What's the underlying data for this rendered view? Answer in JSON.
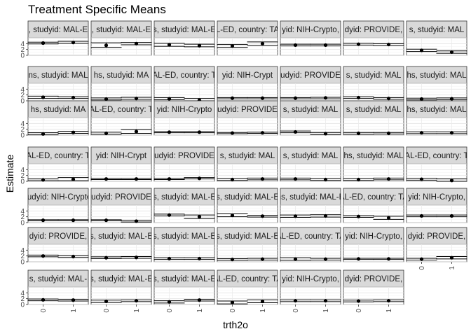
{
  "chart_data": {
    "type": "scatter",
    "title": "Treatment Specific Means",
    "xlabel": "trth2o",
    "ylabel": "Estimate",
    "x_categories": [
      "0",
      "1"
    ],
    "y_ticks": [
      0,
      2,
      4
    ],
    "ylim": [
      0,
      6
    ],
    "grid": true,
    "layout": {
      "rows": 7,
      "cols": 7
    },
    "panels": [
      {
        "label": ", studyid: MAL-E",
        "points": [
          {
            "x": "0",
            "y": 4.2,
            "lo": 3.9,
            "hi": 4.5
          },
          {
            "x": "1",
            "y": 4.4,
            "lo": 4.1,
            "hi": 4.8
          }
        ]
      },
      {
        "label": ", studyid: MAL-E",
        "points": [
          {
            "x": "0",
            "y": 3.4,
            "lo": 2.7,
            "hi": 4.3
          },
          {
            "x": "1",
            "y": 4.0,
            "lo": 3.6,
            "hi": 4.4
          }
        ]
      },
      {
        "label": "s, studyid: MAL-E",
        "points": [
          {
            "x": "0",
            "y": 3.6,
            "lo": 3.1,
            "hi": 4.1
          },
          {
            "x": "1",
            "y": 3.3,
            "lo": 2.9,
            "hi": 3.8
          }
        ]
      },
      {
        "label": "L-ED, country: TA",
        "points": [
          {
            "x": "0",
            "y": 3.2,
            "lo": 2.7,
            "hi": 3.7
          },
          {
            "x": "1",
            "y": 4.0,
            "lo": 3.4,
            "hi": 4.6
          }
        ]
      },
      {
        "label": "yid: NIH-Crypto,",
        "points": [
          {
            "x": "0",
            "y": 3.5,
            "lo": 3.2,
            "hi": 3.8
          },
          {
            "x": "1",
            "y": 3.5,
            "lo": 3.2,
            "hi": 3.8
          }
        ]
      },
      {
        "label": "dyid: PROVIDE, ",
        "points": [
          {
            "x": "0",
            "y": 3.8,
            "lo": 3.5,
            "hi": 4.1
          },
          {
            "x": "1",
            "y": 3.7,
            "lo": 3.4,
            "hi": 4.0
          }
        ]
      },
      {
        "label": "s, studyid: MAL",
        "points": [
          {
            "x": "0",
            "y": 1.7,
            "lo": 1.3,
            "hi": 2.1
          },
          {
            "x": "1",
            "y": 1.1,
            "lo": 0.7,
            "hi": 1.5
          }
        ]
      },
      {
        "label": "ns, studyid: MAL",
        "points": [
          {
            "x": "0",
            "y": 1.2,
            "lo": 0.8,
            "hi": 1.6
          },
          {
            "x": "1",
            "y": 1.1,
            "lo": 0.8,
            "hi": 1.4
          }
        ]
      },
      {
        "label": "hs, studyid: MA",
        "points": [
          {
            "x": "0",
            "y": 0.6,
            "lo": 0.3,
            "hi": 1.0
          },
          {
            "x": "1",
            "y": 0.8,
            "lo": 0.5,
            "hi": 1.2
          }
        ]
      },
      {
        "label": "AL-ED, country: T",
        "points": [
          {
            "x": "0",
            "y": 0.7,
            "lo": 0.4,
            "hi": 1.1
          },
          {
            "x": "1",
            "y": 0.2,
            "lo": -0.2,
            "hi": 0.8
          }
        ]
      },
      {
        "label": "yid: NIH-Crypt",
        "points": [
          {
            "x": "0",
            "y": 0.9,
            "lo": 0.7,
            "hi": 1.1
          },
          {
            "x": "1",
            "y": 0.9,
            "lo": 0.7,
            "hi": 1.1
          }
        ]
      },
      {
        "label": "udyid: PROVIDE",
        "points": [
          {
            "x": "0",
            "y": 0.9,
            "lo": 0.7,
            "hi": 1.1
          },
          {
            "x": "1",
            "y": 1.0,
            "lo": 0.7,
            "hi": 1.2
          }
        ]
      },
      {
        "label": "s, studyid: MAL",
        "points": [
          {
            "x": "0",
            "y": 1.1,
            "lo": 0.8,
            "hi": 1.4
          },
          {
            "x": "1",
            "y": 0.8,
            "lo": 0.5,
            "hi": 1.1
          }
        ]
      },
      {
        "label": "hs, studyid: MAL",
        "points": [
          {
            "x": "0",
            "y": 0.6,
            "lo": 0.3,
            "hi": 0.9
          },
          {
            "x": "1",
            "y": 0.7,
            "lo": 0.4,
            "hi": 1.0
          }
        ]
      },
      {
        "label": "hs, studyid: MA",
        "points": [
          {
            "x": "0",
            "y": 0.4,
            "lo": 0.1,
            "hi": 0.8
          },
          {
            "x": "1",
            "y": 0.9,
            "lo": 0.6,
            "hi": 1.3
          }
        ]
      },
      {
        "label": "AL-ED, country: T",
        "points": [
          {
            "x": "0",
            "y": 0.6,
            "lo": 0.3,
            "hi": 1.0
          },
          {
            "x": "1",
            "y": 1.2,
            "lo": 0.6,
            "hi": 1.9
          }
        ]
      },
      {
        "label": "yid: NIH-Crypto",
        "points": [
          {
            "x": "0",
            "y": 1.0,
            "lo": 0.8,
            "hi": 1.2
          },
          {
            "x": "1",
            "y": 1.0,
            "lo": 0.8,
            "hi": 1.2
          }
        ]
      },
      {
        "label": "udyid: PROVIDE",
        "points": [
          {
            "x": "0",
            "y": 0.7,
            "lo": 0.5,
            "hi": 0.9
          },
          {
            "x": "1",
            "y": 0.8,
            "lo": 0.6,
            "hi": 1.0
          }
        ]
      },
      {
        "label": "s, studyid: MAL",
        "points": [
          {
            "x": "0",
            "y": 1.1,
            "lo": 0.8,
            "hi": 1.4
          },
          {
            "x": "1",
            "y": 0.5,
            "lo": 0.2,
            "hi": 0.9
          }
        ]
      },
      {
        "label": "s, studyid: MAL",
        "points": [
          {
            "x": "0",
            "y": 0.6,
            "lo": 0.3,
            "hi": 0.9
          },
          {
            "x": "1",
            "y": 0.6,
            "lo": 0.4,
            "hi": 0.9
          }
        ]
      },
      {
        "label": "hs, studyid: MAL",
        "points": [
          {
            "x": "0",
            "y": 0.8,
            "lo": 0.5,
            "hi": 1.1
          },
          {
            "x": "1",
            "y": 0.8,
            "lo": 0.5,
            "hi": 1.1
          }
        ]
      },
      {
        "label": "AL-ED, country: T",
        "points": [
          {
            "x": "0",
            "y": 0.5,
            "lo": 0.2,
            "hi": 0.8
          },
          {
            "x": "1",
            "y": 0.7,
            "lo": 0.2,
            "hi": 1.3
          }
        ]
      },
      {
        "label": "yid: NIH-Crypt",
        "points": [
          {
            "x": "0",
            "y": 0.8,
            "lo": 0.6,
            "hi": 1.0
          },
          {
            "x": "1",
            "y": 0.8,
            "lo": 0.6,
            "hi": 1.0
          }
        ]
      },
      {
        "label": "udyid: PROVIDE",
        "points": [
          {
            "x": "0",
            "y": 0.8,
            "lo": 0.6,
            "hi": 1.0
          },
          {
            "x": "1",
            "y": 1.0,
            "lo": 0.8,
            "hi": 1.3
          }
        ]
      },
      {
        "label": "s, studyid: MAL",
        "points": [
          {
            "x": "0",
            "y": 0.6,
            "lo": 0.3,
            "hi": 0.9
          },
          {
            "x": "1",
            "y": 0.8,
            "lo": 0.5,
            "hi": 1.1
          }
        ]
      },
      {
        "label": "s, studyid: MAL",
        "points": [
          {
            "x": "0",
            "y": 0.8,
            "lo": 0.5,
            "hi": 1.1
          },
          {
            "x": "1",
            "y": 0.6,
            "lo": 0.3,
            "hi": 0.9
          }
        ]
      },
      {
        "label": "hs, studyid: MAL",
        "points": [
          {
            "x": "0",
            "y": 0.6,
            "lo": 0.3,
            "hi": 0.9
          },
          {
            "x": "1",
            "y": 0.8,
            "lo": 0.5,
            "hi": 1.1
          }
        ]
      },
      {
        "label": "AL-ED, country: T",
        "points": [
          {
            "x": "0",
            "y": 0.7,
            "lo": 0.4,
            "hi": 1.0
          },
          {
            "x": "1",
            "y": 0.3,
            "lo": -0.1,
            "hi": 0.8
          }
        ]
      },
      {
        "label": "tudyid: NIH-Crypto",
        "points": [
          {
            "x": "0",
            "y": 0.8,
            "lo": 0.6,
            "hi": 1.0
          },
          {
            "x": "1",
            "y": 0.8,
            "lo": 0.6,
            "hi": 1.0
          }
        ]
      },
      {
        "label": "udyid: PROVIDE",
        "points": [
          {
            "x": "0",
            "y": 0.8,
            "lo": 0.6,
            "hi": 1.0
          },
          {
            "x": "1",
            "y": 0.5,
            "lo": 0.2,
            "hi": 0.8
          }
        ]
      },
      {
        "label": "s, studyid: MAL-E",
        "points": [
          {
            "x": "0",
            "y": 2.6,
            "lo": 2.3,
            "hi": 2.9
          },
          {
            "x": "1",
            "y": 2.0,
            "lo": 1.4,
            "hi": 2.6
          }
        ]
      },
      {
        "label": "s, studyid: MAL-E",
        "points": [
          {
            "x": "0",
            "y": 2.5,
            "lo": 2.0,
            "hi": 3.0
          },
          {
            "x": "1",
            "y": 2.2,
            "lo": 1.9,
            "hi": 2.5
          }
        ]
      },
      {
        "label": "ns, studyid: MAL-E",
        "points": [
          {
            "x": "0",
            "y": 2.2,
            "lo": 1.8,
            "hi": 2.6
          },
          {
            "x": "1",
            "y": 2.3,
            "lo": 1.9,
            "hi": 2.7
          }
        ]
      },
      {
        "label": "AL-ED, country: TA",
        "points": [
          {
            "x": "0",
            "y": 2.1,
            "lo": 1.8,
            "hi": 2.4
          },
          {
            "x": "1",
            "y": 1.6,
            "lo": 1.1,
            "hi": 2.2
          }
        ]
      },
      {
        "label": "yid: NIH-Crypto,",
        "points": [
          {
            "x": "0",
            "y": 2.3,
            "lo": 2.0,
            "hi": 2.6
          },
          {
            "x": "1",
            "y": 2.3,
            "lo": 2.0,
            "hi": 2.6
          }
        ]
      },
      {
        "label": "dyid: PROVIDE,",
        "points": [
          {
            "x": "0",
            "y": 2.0,
            "lo": 1.7,
            "hi": 2.3
          },
          {
            "x": "1",
            "y": 1.8,
            "lo": 1.5,
            "hi": 2.1
          }
        ]
      },
      {
        "label": "s, studyid: MAL-E",
        "points": [
          {
            "x": "0",
            "y": 1.4,
            "lo": 1.1,
            "hi": 1.7
          },
          {
            "x": "1",
            "y": 1.5,
            "lo": 1.2,
            "hi": 1.8
          }
        ]
      },
      {
        "label": "s, studyid: MAL-E",
        "points": [
          {
            "x": "0",
            "y": 1.1,
            "lo": 0.8,
            "hi": 1.4
          },
          {
            "x": "1",
            "y": 1.1,
            "lo": 0.8,
            "hi": 1.4
          }
        ]
      },
      {
        "label": "s, studyid: MAL-E",
        "points": [
          {
            "x": "0",
            "y": 0.8,
            "lo": 0.5,
            "hi": 1.1
          },
          {
            "x": "1",
            "y": 0.9,
            "lo": 0.6,
            "hi": 1.2
          }
        ]
      },
      {
        "label": "AL-ED, country: TA",
        "points": [
          {
            "x": "0",
            "y": 0.9,
            "lo": 0.5,
            "hi": 1.4
          },
          {
            "x": "1",
            "y": 0.9,
            "lo": 0.6,
            "hi": 1.2
          }
        ]
      },
      {
        "label": "yid: NIH-Crypto,",
        "points": [
          {
            "x": "0",
            "y": 1.0,
            "lo": 0.8,
            "hi": 1.2
          },
          {
            "x": "1",
            "y": 1.0,
            "lo": 0.8,
            "hi": 1.2
          }
        ]
      },
      {
        "label": "dyid: PROVIDE,",
        "points": [
          {
            "x": "0",
            "y": 0.9,
            "lo": 0.6,
            "hi": 1.2
          },
          {
            "x": "1",
            "y": 1.4,
            "lo": 1.0,
            "hi": 1.8
          }
        ]
      },
      {
        "label": "s, studyid: MAL-",
        "points": [
          {
            "x": "0",
            "y": 1.6,
            "lo": 1.3,
            "hi": 1.9
          },
          {
            "x": "1",
            "y": 1.5,
            "lo": 1.2,
            "hi": 1.8
          }
        ]
      },
      {
        "label": "s, studyid: MAL-E",
        "points": [
          {
            "x": "0",
            "y": 1.1,
            "lo": 0.7,
            "hi": 1.5
          },
          {
            "x": "1",
            "y": 1.3,
            "lo": 1.0,
            "hi": 1.6
          }
        ]
      },
      {
        "label": "s, studyid: MAL-E",
        "points": [
          {
            "x": "0",
            "y": 0.9,
            "lo": 0.5,
            "hi": 1.3
          },
          {
            "x": "1",
            "y": 1.5,
            "lo": 1.2,
            "hi": 1.8
          }
        ]
      },
      {
        "label": "AL-ED, country: TA",
        "points": [
          {
            "x": "0",
            "y": 0.7,
            "lo": 0.2,
            "hi": 1.2
          },
          {
            "x": "1",
            "y": 1.1,
            "lo": 0.6,
            "hi": 1.6
          }
        ]
      },
      {
        "label": "yid: NIH-Crypto,",
        "points": [
          {
            "x": "0",
            "y": 1.3,
            "lo": 1.0,
            "hi": 1.6
          },
          {
            "x": "1",
            "y": 1.3,
            "lo": 1.0,
            "hi": 1.6
          }
        ]
      },
      {
        "label": "dyid: PROVIDE,",
        "points": [
          {
            "x": "0",
            "y": 1.2,
            "lo": 0.9,
            "hi": 1.5
          },
          {
            "x": "1",
            "y": 1.3,
            "lo": 1.0,
            "hi": 1.6
          }
        ]
      }
    ]
  }
}
